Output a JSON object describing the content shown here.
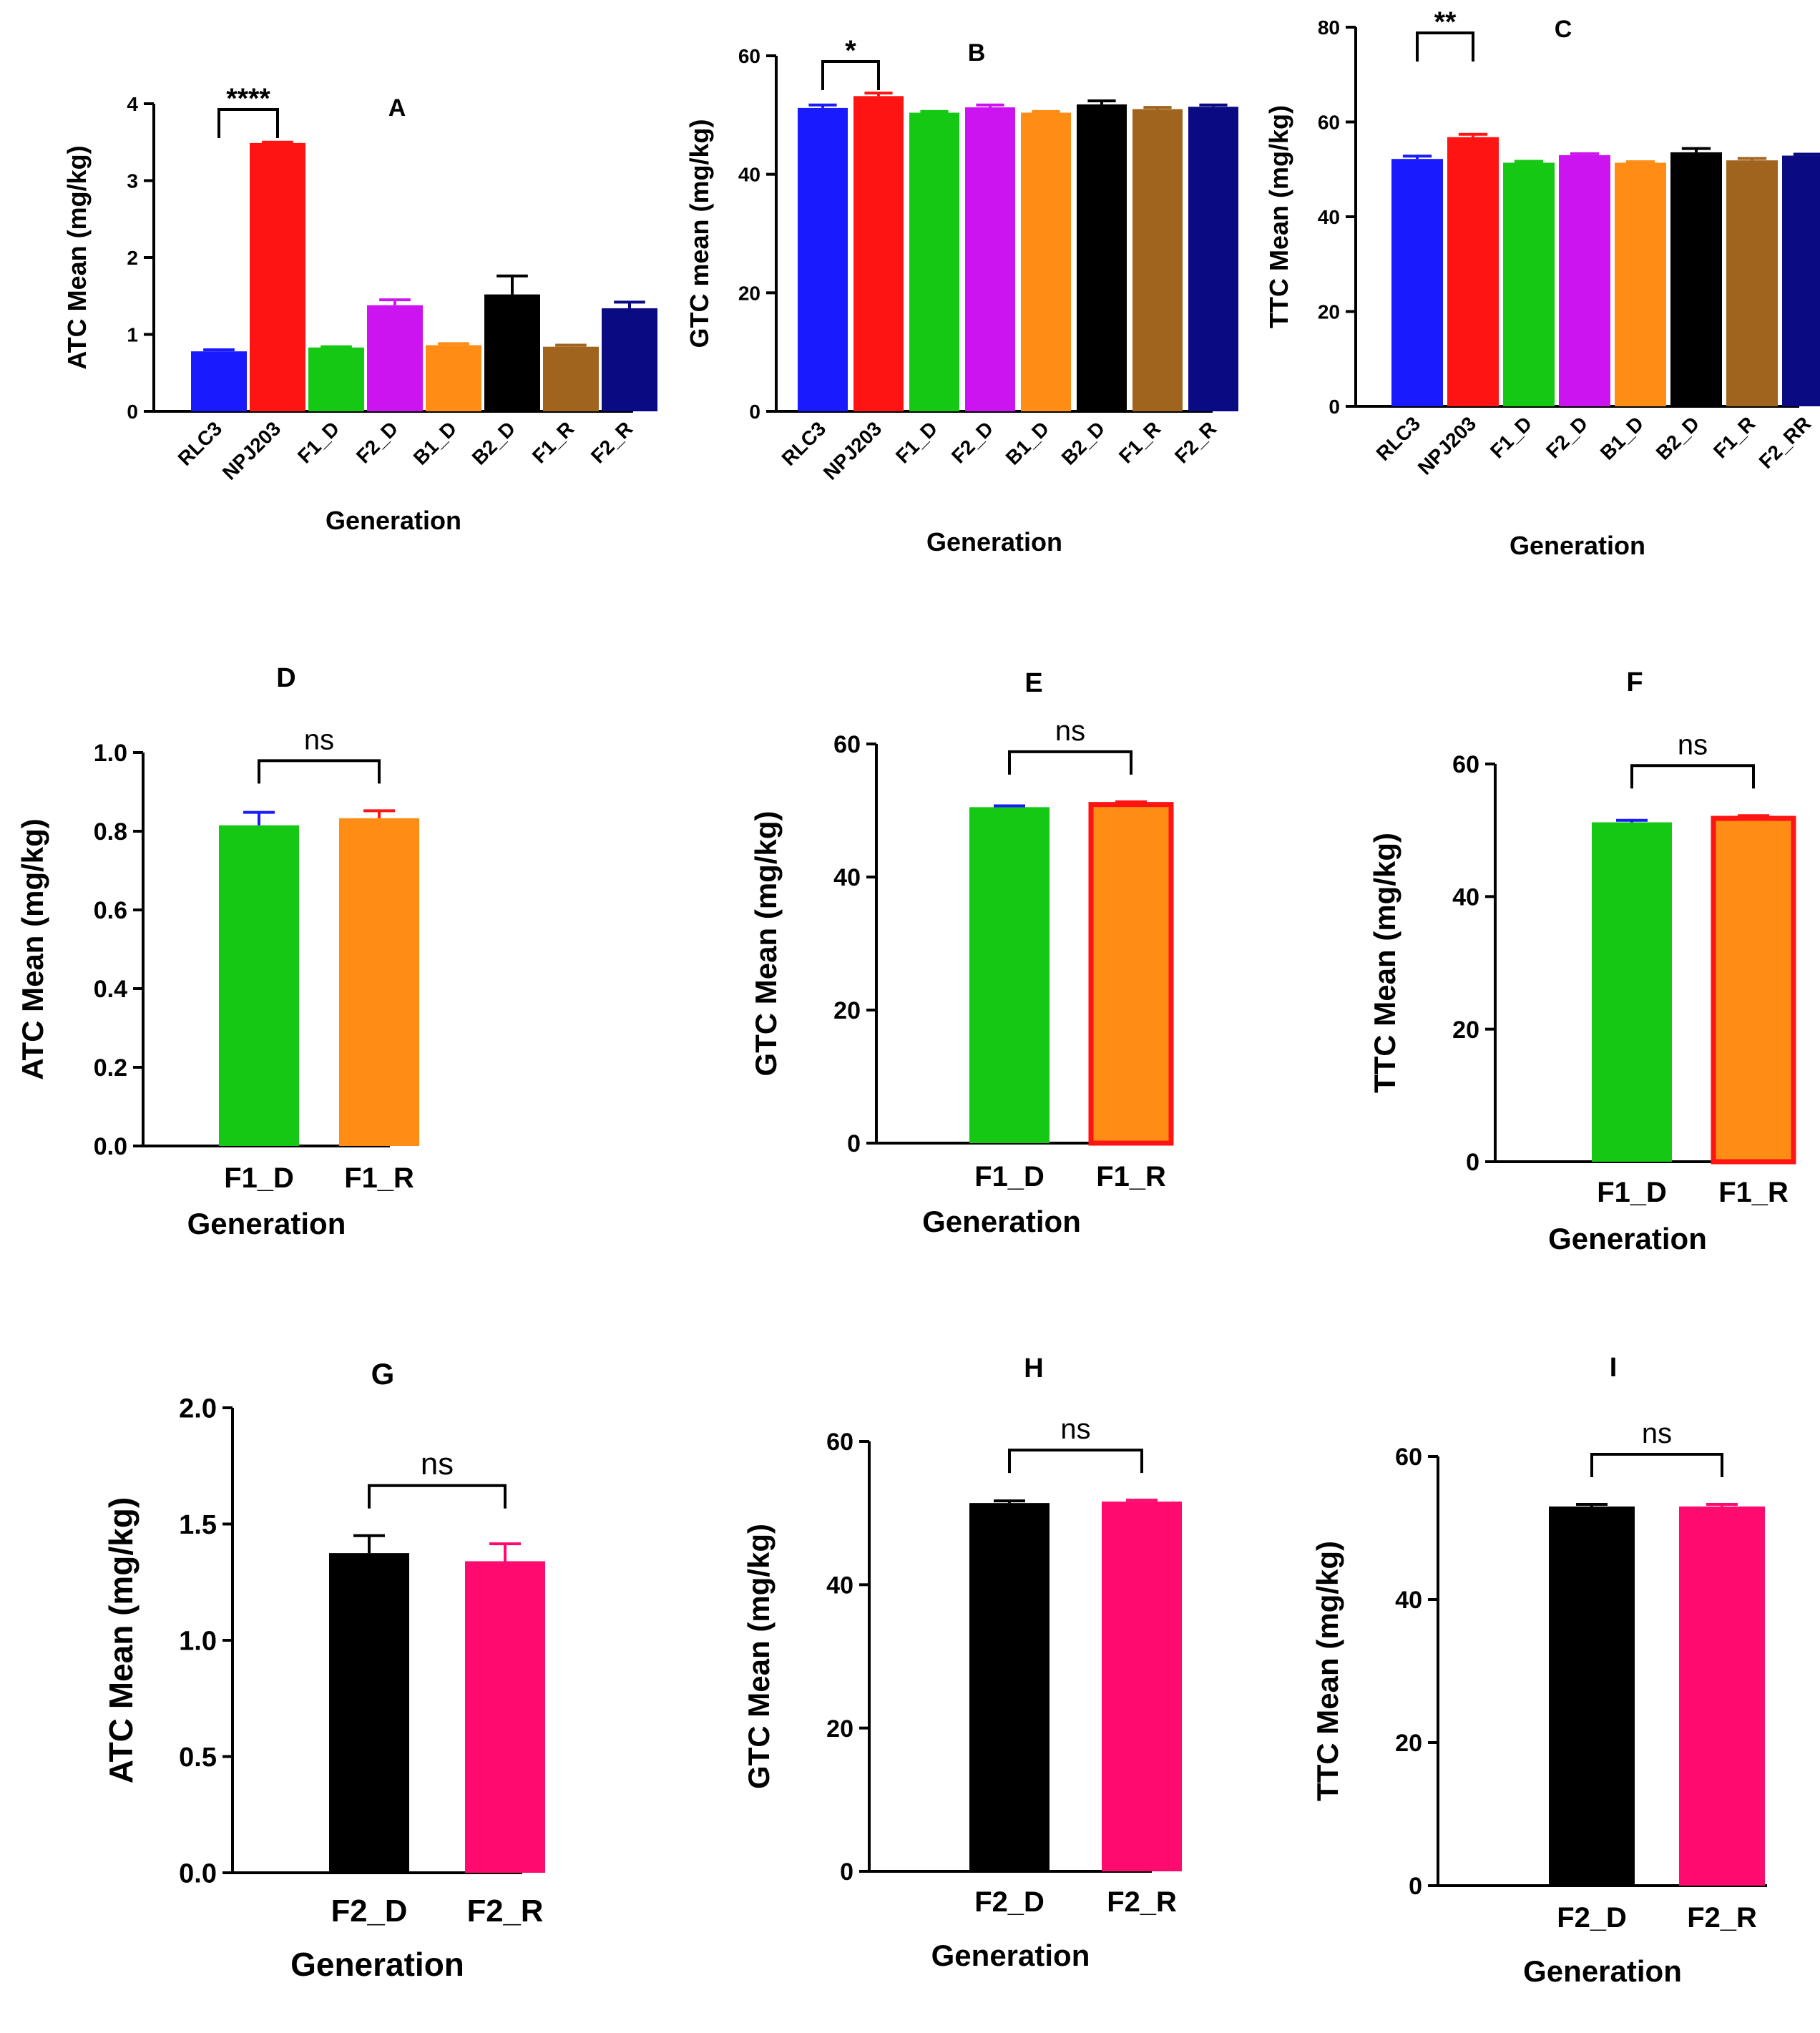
{
  "chart_data": [
    {
      "panel": "A",
      "type": "bar",
      "title": "A",
      "xlabel": "Generation",
      "ylabel": "ATC Mean  (mg/kg)",
      "categories": [
        "RLC3",
        "NPJ203",
        "F1_D",
        "F2_D",
        "B1_D",
        "B2_D",
        "F1_R",
        "F2_R"
      ],
      "values": [
        0.78,
        3.49,
        0.83,
        1.38,
        0.86,
        1.52,
        0.84,
        1.34
      ],
      "errors": [
        0.02,
        0.01,
        0.01,
        0.07,
        0.02,
        0.24,
        0.02,
        0.08
      ],
      "colors": [
        "#1a1aff",
        "#ff1414",
        "#14c814",
        "#cc14f0",
        "#ff8c14",
        "#000000",
        "#a0641e",
        "#0a0a82"
      ],
      "ylim": [
        0,
        4
      ],
      "yticks": [
        0,
        1,
        2,
        3,
        4
      ],
      "significance": [
        {
          "from": 0,
          "to": 1,
          "label": "****"
        }
      ],
      "tick_rotation": 45
    },
    {
      "panel": "B",
      "type": "bar",
      "title": "B",
      "xlabel": "Generation",
      "ylabel": "GTC mean (mg/kg)",
      "categories": [
        "RLC3",
        "NPJ203",
        "F1_D",
        "F2_D",
        "B1_D",
        "B2_D",
        "F1_R",
        "F2_R"
      ],
      "values": [
        51.2,
        53.2,
        50.4,
        51.3,
        50.4,
        51.8,
        51.0,
        51.4
      ],
      "errors": [
        0.5,
        0.5,
        0.2,
        0.4,
        0.2,
        0.6,
        0.3,
        0.3
      ],
      "colors": [
        "#1a1aff",
        "#ff1414",
        "#14c814",
        "#cc14f0",
        "#ff8c14",
        "#000000",
        "#a0641e",
        "#0a0a82"
      ],
      "ylim": [
        0,
        60
      ],
      "yticks": [
        0,
        20,
        40,
        60
      ],
      "significance": [
        {
          "from": 0,
          "to": 1,
          "label": "*"
        }
      ],
      "tick_rotation": 45
    },
    {
      "panel": "C",
      "type": "bar",
      "title": "C",
      "xlabel": "Generation",
      "ylabel": "TTC Mean (mg/kg)",
      "categories": [
        "RLC3",
        "NPJ203",
        "F1_D",
        "F2_D",
        "B1_D",
        "B2_D",
        "F1_R",
        "F2_RR"
      ],
      "values": [
        52.2,
        56.8,
        51.4,
        53.0,
        51.4,
        53.6,
        51.9,
        52.9
      ],
      "errors": [
        0.6,
        0.6,
        0.3,
        0.3,
        0.2,
        0.8,
        0.4,
        0.3
      ],
      "colors": [
        "#1a1aff",
        "#ff1414",
        "#14c814",
        "#cc14f0",
        "#ff8c14",
        "#000000",
        "#a0641e",
        "#0a0a82"
      ],
      "ylim": [
        0,
        80
      ],
      "yticks": [
        0,
        20,
        40,
        60,
        80
      ],
      "significance": [
        {
          "from": 0,
          "to": 1,
          "label": "**"
        }
      ],
      "tick_rotation": 45
    },
    {
      "panel": "D",
      "type": "bar",
      "title": "D",
      "xlabel": "Generation",
      "ylabel": "ATC Mean  (mg/kg)",
      "categories": [
        "F1_D",
        "F1_R"
      ],
      "values": [
        0.815,
        0.833
      ],
      "errors": [
        0.033,
        0.019
      ],
      "colors": [
        "#14c814",
        "#ff8c14"
      ],
      "error_colors": [
        "#1a1aff",
        "#ff1414"
      ],
      "outline_colors": [
        "",
        ""
      ],
      "ylim": [
        0,
        1.0
      ],
      "yticks": [
        "0.0",
        "0.2",
        "0.4",
        "0.6",
        "0.8",
        "1.0"
      ],
      "significance": [
        {
          "from": 0,
          "to": 1,
          "label": "ns"
        }
      ],
      "tick_rotation": 0
    },
    {
      "panel": "E",
      "type": "bar",
      "title": "E",
      "xlabel": "Generation",
      "ylabel": "GTC Mean (mg/kg)",
      "categories": [
        "F1_D",
        "F1_R"
      ],
      "values": [
        50.5,
        50.9
      ],
      "errors": [
        0.2,
        0.4
      ],
      "colors": [
        "#14c814",
        "#ff8c14"
      ],
      "error_colors": [
        "#1a1aff",
        "#ff1414"
      ],
      "outline_colors": [
        "",
        "#ff1414"
      ],
      "ylim": [
        0,
        60
      ],
      "yticks": [
        0,
        20,
        40,
        60
      ],
      "significance": [
        {
          "from": 0,
          "to": 1,
          "label": "ns"
        }
      ],
      "tick_rotation": 0
    },
    {
      "panel": "F",
      "type": "bar",
      "title": "F",
      "xlabel": "Generation",
      "ylabel": "TTC Mean  (mg/kg)",
      "categories": [
        "F1_D",
        "F1_R"
      ],
      "values": [
        51.2,
        51.8
      ],
      "errors": [
        0.3,
        0.4
      ],
      "colors": [
        "#14c814",
        "#ff8c14"
      ],
      "error_colors": [
        "#1a1aff",
        "#ff1414"
      ],
      "outline_colors": [
        "",
        "#ff1414"
      ],
      "ylim": [
        0,
        60
      ],
      "yticks": [
        0,
        20,
        40,
        60
      ],
      "significance": [
        {
          "from": 0,
          "to": 1,
          "label": "ns"
        }
      ],
      "tick_rotation": 0
    },
    {
      "panel": "G",
      "type": "bar",
      "title": "G",
      "xlabel": "Generation",
      "ylabel": "ATC Mean (mg/kg)",
      "categories": [
        "F2_D",
        "F2_R"
      ],
      "values": [
        1.375,
        1.34
      ],
      "errors": [
        0.075,
        0.075
      ],
      "colors": [
        "#000000",
        "#ff0a6e"
      ],
      "error_colors": [
        "#000000",
        "#ff0a6e"
      ],
      "outline_colors": [
        "",
        ""
      ],
      "ylim": [
        0,
        2.0
      ],
      "yticks": [
        "0.0",
        "0.5",
        "1.0",
        "1.5",
        "2.0"
      ],
      "significance": [
        {
          "from": 0,
          "to": 1,
          "label": "ns"
        }
      ],
      "tick_rotation": 0
    },
    {
      "panel": "H",
      "type": "bar",
      "title": "H",
      "xlabel": "Generation",
      "ylabel": "GTC Mean (mg/kg)",
      "categories": [
        "F2_D",
        "F2_R"
      ],
      "values": [
        51.4,
        51.6
      ],
      "errors": [
        0.3,
        0.2
      ],
      "colors": [
        "#000000",
        "#ff0a6e"
      ],
      "error_colors": [
        "#000000",
        "#ff0a6e"
      ],
      "outline_colors": [
        "",
        ""
      ],
      "ylim": [
        0,
        60
      ],
      "yticks": [
        0,
        20,
        40,
        60
      ],
      "significance": [
        {
          "from": 0,
          "to": 1,
          "label": "ns"
        }
      ],
      "tick_rotation": 0
    },
    {
      "panel": "I",
      "type": "bar",
      "title": "I",
      "xlabel": "Generation",
      "ylabel": "TTC Mean (mg/kg)",
      "categories": [
        "F2_D",
        "F2_R"
      ],
      "values": [
        53.0,
        53.0
      ],
      "errors": [
        0.3,
        0.3
      ],
      "colors": [
        "#000000",
        "#ff0a6e"
      ],
      "error_colors": [
        "#000000",
        "#ff0a6e"
      ],
      "outline_colors": [
        "",
        ""
      ],
      "ylim": [
        0,
        60
      ],
      "yticks": [
        0,
        20,
        40,
        60
      ],
      "significance": [
        {
          "from": 0,
          "to": 1,
          "label": "ns"
        }
      ],
      "tick_rotation": 0
    }
  ]
}
